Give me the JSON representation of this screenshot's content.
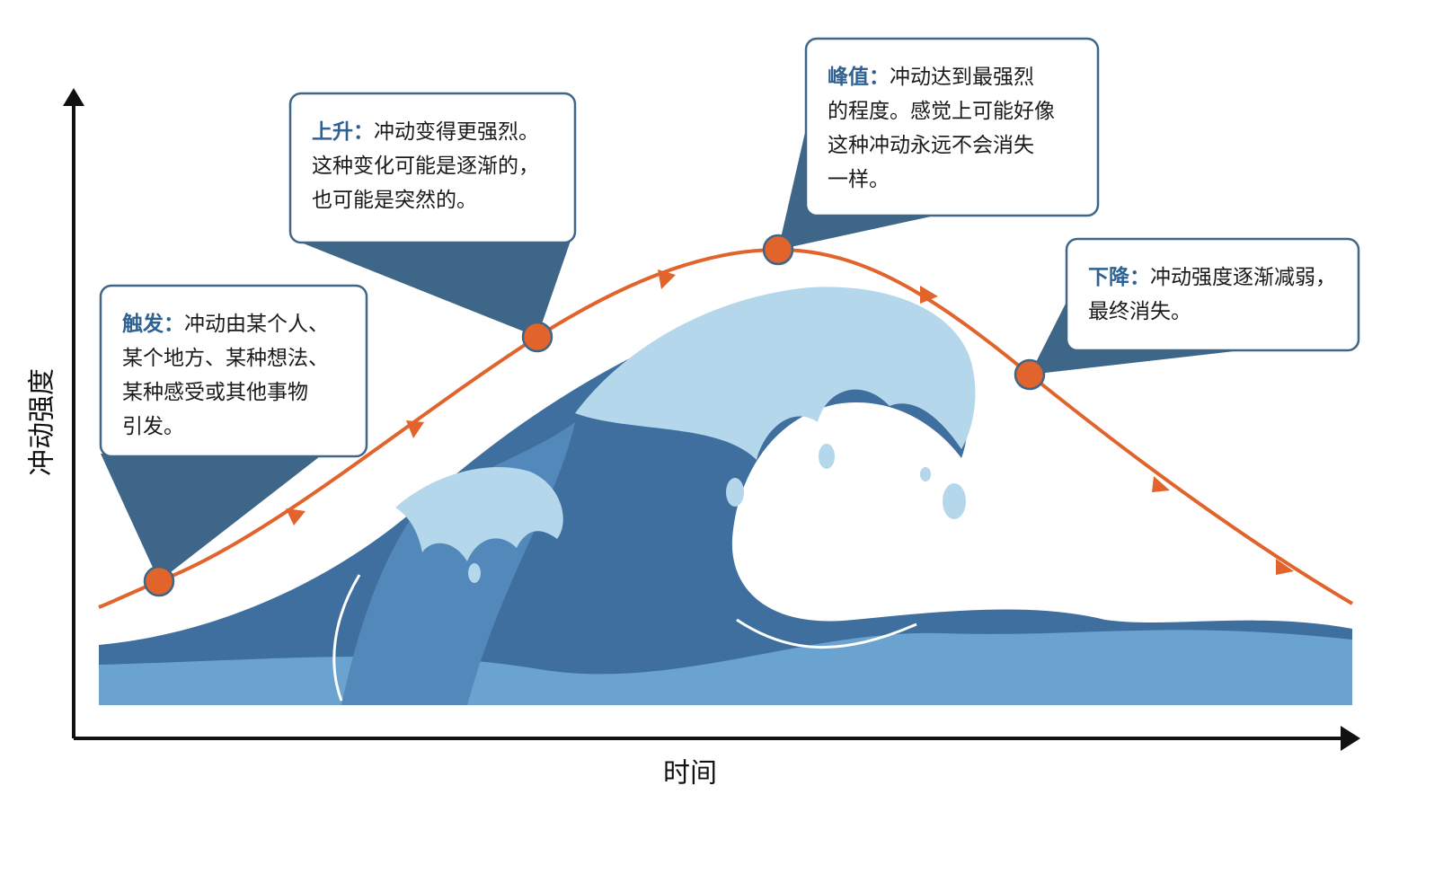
{
  "y_axis_label": "冲动强度",
  "x_axis_label": "时间",
  "stages": [
    {
      "title": "触发：",
      "lines": [
        "冲动由某个人、",
        "某个地方、某种想法、",
        "某种感受或其他事物",
        "引发。"
      ]
    },
    {
      "title": "上升：",
      "lines": [
        "冲动变得更强烈。",
        "这种变化可能是逐渐的，",
        "也可能是突然的。"
      ]
    },
    {
      "title": "峰值：",
      "lines": [
        "冲动达到最强烈",
        "的程度。感觉上可能好像",
        "这种冲动永远不会消失",
        "一样。"
      ]
    },
    {
      "title": "下降：",
      "lines": [
        "冲动强度逐渐减弱，",
        "最终消失。"
      ]
    }
  ]
}
